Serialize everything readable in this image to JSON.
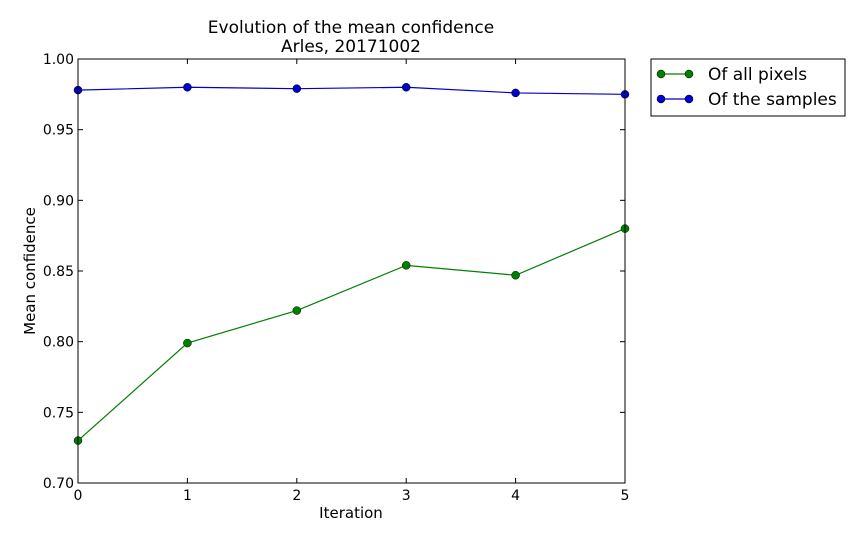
{
  "chart_data": {
    "type": "line",
    "title": "Evolution of the mean confidence",
    "subtitle": "Arles, 20171002",
    "xlabel": "Iteration",
    "ylabel": "Mean confidence",
    "xlim": [
      0,
      5
    ],
    "ylim": [
      0.7,
      1.0
    ],
    "x": [
      0,
      1,
      2,
      3,
      4,
      5
    ],
    "xticks": [
      0,
      1,
      2,
      3,
      4,
      5
    ],
    "xtick_labels": [
      "0",
      "1",
      "2",
      "3",
      "4",
      "5"
    ],
    "yticks": [
      0.7,
      0.75,
      0.8,
      0.85,
      0.9,
      0.95,
      1.0
    ],
    "ytick_labels": [
      "0.70",
      "0.75",
      "0.80",
      "0.85",
      "0.90",
      "0.95",
      "1.00"
    ],
    "grid": false,
    "legend_placement": "outside-top-right",
    "series": [
      {
        "name": "Of all pixels",
        "color": "#007f00",
        "values": [
          0.73,
          0.799,
          0.822,
          0.854,
          0.847,
          0.88
        ]
      },
      {
        "name": "Of the samples",
        "color": "#0000cc",
        "values": [
          0.978,
          0.98,
          0.979,
          0.98,
          0.976,
          0.975
        ]
      }
    ]
  }
}
